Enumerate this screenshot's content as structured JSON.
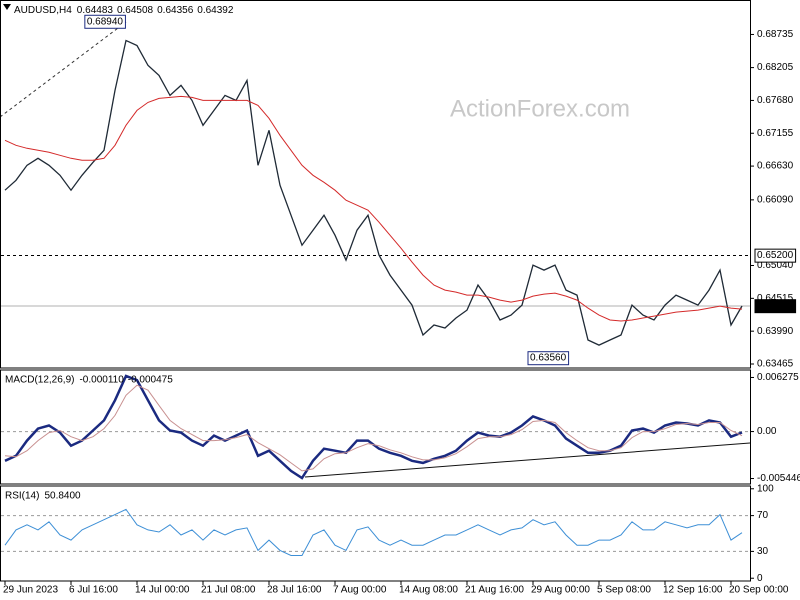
{
  "chart_data": [
    {
      "type": "line",
      "title": "AUDUSD,H4",
      "header_values": [
        0.64483,
        0.64508,
        0.64356,
        0.64392
      ],
      "watermark": "ActionForex.com",
      "categories": [
        "29 Jun 2023",
        null,
        null,
        null,
        null,
        null,
        "6 Jul 16:00",
        null,
        null,
        null,
        null,
        null,
        "14 Jul 00:00",
        null,
        null,
        null,
        null,
        null,
        "21 Jul 08:00",
        null,
        null,
        null,
        null,
        null,
        "28 Jul 16:00",
        null,
        null,
        null,
        null,
        null,
        "7 Aug 00:00",
        null,
        null,
        null,
        null,
        null,
        "14 Aug 08:00",
        null,
        null,
        null,
        null,
        null,
        "21 Aug 16:00",
        null,
        null,
        null,
        null,
        null,
        "29 Aug 00:00",
        null,
        null,
        null,
        null,
        null,
        "5 Sep 08:00",
        null,
        null,
        null,
        null,
        null,
        "12 Sep 16:00",
        null,
        null,
        null,
        null,
        null,
        "20 Sep 00:00",
        null
      ],
      "ylim": [
        0.63401,
        0.69278
      ],
      "yticks": [
        0.68735,
        0.68205,
        {
          "value": 0.6768,
          "label": "0.67680"
        },
        0.67155,
        {
          "value": 0.6663,
          "label": "0.66630"
        },
        {
          "value": 0.6609,
          "label": "0.66090"
        },
        {
          "value": 0.6504,
          "label": "0.65040"
        },
        0.64515,
        {
          "value": 0.6399,
          "label": "0.63990"
        },
        0.63465
      ],
      "levels": [
        {
          "value": 0.652,
          "label": "0.65200"
        }
      ],
      "last_price": 0.64392,
      "high_mark": {
        "value": 0.6894,
        "label": "0.68940"
      },
      "low_mark": {
        "value": 0.6356,
        "label": "0.63560"
      },
      "series": [
        {
          "color": "#1f2a36",
          "values": [
            0.66244,
            0.66403,
            0.66643,
            0.66755,
            0.66643,
            0.66483,
            0.66244,
            0.66483,
            0.66691,
            0.66882,
            0.67841,
            0.68639,
            0.68559,
            0.6824,
            0.6808,
            0.67761,
            0.67921,
            0.67681,
            0.67282,
            0.67521,
            0.67761,
            0.67681,
            0.68,
            0.66643,
            0.67202,
            0.66324,
            0.65844,
            0.65365,
            0.65605,
            0.65844,
            0.65525,
            0.65126,
            0.65605,
            0.65844,
            0.65206,
            0.64886,
            0.64647,
            0.64407,
            0.63928,
            0.64088,
            0.6404,
            0.642,
            0.64327,
            0.64727,
            0.64487,
            0.64168,
            0.64247,
            0.64407,
            0.65046,
            0.64966,
            0.65046,
            0.64647,
            0.64567,
            0.63848,
            0.63768,
            0.63848,
            0.63928,
            0.64407,
            0.64247,
            0.64168,
            0.64407,
            0.64567,
            0.64487,
            0.64407,
            0.64647,
            0.64966,
            0.64088,
            0.64392
          ]
        },
        {
          "color": "#d42a2a",
          "values": [
            0.67042,
            0.66962,
            0.66914,
            0.66882,
            0.66851,
            0.66803,
            0.66755,
            0.66723,
            0.66723,
            0.66755,
            0.66962,
            0.67282,
            0.67521,
            0.67649,
            0.67713,
            0.67729,
            0.67745,
            0.67729,
            0.67681,
            0.67681,
            0.67681,
            0.67681,
            0.67681,
            0.67601,
            0.67394,
            0.67122,
            0.66882,
            0.66643,
            0.66483,
            0.66371,
            0.66244,
            0.66084,
            0.66004,
            0.65924,
            0.65733,
            0.65525,
            0.65317,
            0.65094,
            0.64886,
            0.64727,
            0.64647,
            0.64615,
            0.64567,
            0.64567,
            0.64535,
            0.64487,
            0.64455,
            0.64487,
            0.64551,
            0.64583,
            0.64599,
            0.64551,
            0.64487,
            0.64359,
            0.64247,
            0.64168,
            0.64152,
            0.64168,
            0.642,
            0.64231,
            0.64263,
            0.64295,
            0.64311,
            0.64327,
            0.64359,
            0.64391,
            0.64359,
            0.64343
          ]
        }
      ]
    },
    {
      "type": "line",
      "title": "MACD(12,26,9)",
      "legend_values": [
        {
          "value": -0.00011,
          "label": "-0.000110"
        },
        -0.000475
      ],
      "ylim": [
        -0.00608,
        0.00714
      ],
      "yticks": [
        0.006275,
        {
          "value": 0,
          "label": "0.00"
        },
        -0.005446
      ],
      "levels": [
        0
      ],
      "series": [
        {
          "color": "#1b2a80",
          "values": [
            -0.00339,
            -0.00281,
            -0.00105,
            0.00035,
            0.0007,
            -0.00012,
            -0.00164,
            -0.00105,
            0.00012,
            0.00129,
            0.00363,
            0.00644,
            0.00597,
            0.00363,
            0.00129,
            0.00012,
            -0.00012,
            -0.00105,
            -0.00164,
            -0.00047,
            -0.00105,
            -0.00047,
            0.00012,
            -0.00281,
            -0.00222,
            -0.00339,
            -0.00456,
            -0.00538,
            -0.00339,
            -0.00199,
            -0.00222,
            -0.00246,
            -0.00105,
            -0.00105,
            -0.00199,
            -0.00246,
            -0.00281,
            -0.00339,
            -0.00363,
            -0.00316,
            -0.00281,
            -0.00222,
            -0.00105,
            -0.00012,
            -0.00047,
            -0.00059,
            -0.00012,
            0.0007,
            0.00176,
            0.00129,
            0.0007,
            -0.00082,
            -0.00164,
            -0.00246,
            -0.00246,
            -0.00222,
            -0.00164,
            0.00012,
            0.00035,
            -0.00012,
            0.0007,
            0.00105,
            0.00094,
            0.0007,
            0.00129,
            0.00105,
            -0.00059,
            -0.00011
          ]
        },
        {
          "color": "#c89090",
          "values": [
            -0.00281,
            -0.00293,
            -0.00222,
            -0.00105,
            -0.00012,
            0.00012,
            -0.00059,
            -0.00105,
            -0.00059,
            0.00035,
            0.00187,
            0.00421,
            0.00538,
            0.0048,
            0.00304,
            0.00129,
            0.00035,
            -0.00035,
            -0.00105,
            -0.00105,
            -0.00094,
            -0.0007,
            -0.00035,
            -0.00129,
            -0.00199,
            -0.00269,
            -0.00363,
            -0.00456,
            -0.00433,
            -0.00316,
            -0.00257,
            -0.00246,
            -0.00187,
            -0.0014,
            -0.00164,
            -0.00211,
            -0.00246,
            -0.00293,
            -0.00328,
            -0.00328,
            -0.00304,
            -0.00257,
            -0.00176,
            -0.00082,
            -0.00059,
            -0.00059,
            -0.00035,
            0.00023,
            0.00117,
            0.00129,
            0.00105,
            -0.00012,
            -0.00105,
            -0.00187,
            -0.00222,
            -0.00222,
            -0.00187,
            -0.0007,
            0,
            0,
            0.00035,
            0.00082,
            0.00094,
            0.00082,
            0.00105,
            0.00105,
            0.00012,
            -0.000475
          ]
        }
      ]
    },
    {
      "type": "line",
      "title": "RSI(14)",
      "legend_values": [
        {
          "value": 50.84,
          "label": "50.8400"
        }
      ],
      "ylim": [
        -3.1,
        103.1
      ],
      "yticks": [
        100,
        70,
        30,
        0
      ],
      "levels": [
        30,
        70
      ],
      "series": [
        {
          "color": "#3d8fd6",
          "values": [
            36.9,
            54,
            59.7,
            54,
            63.1,
            48.3,
            42.6,
            54,
            59.7,
            65.4,
            71.1,
            76.9,
            59.7,
            54,
            51.7,
            59.7,
            48.3,
            54,
            42.6,
            54,
            48.3,
            54,
            56.3,
            31.1,
            42.6,
            31.1,
            25.4,
            25.4,
            48.3,
            54,
            36.9,
            31.1,
            54,
            57.4,
            42.6,
            36.9,
            42.6,
            36.9,
            36.9,
            42.6,
            48.3,
            48.3,
            54,
            59.7,
            54,
            48.3,
            54,
            56.3,
            65.4,
            59.7,
            63.1,
            48.3,
            36.9,
            36.9,
            42.6,
            42.6,
            48.3,
            63.1,
            54,
            54,
            63.1,
            59.7,
            56.3,
            59.7,
            59.7,
            71.1,
            42.6,
            50.84
          ]
        }
      ]
    }
  ]
}
